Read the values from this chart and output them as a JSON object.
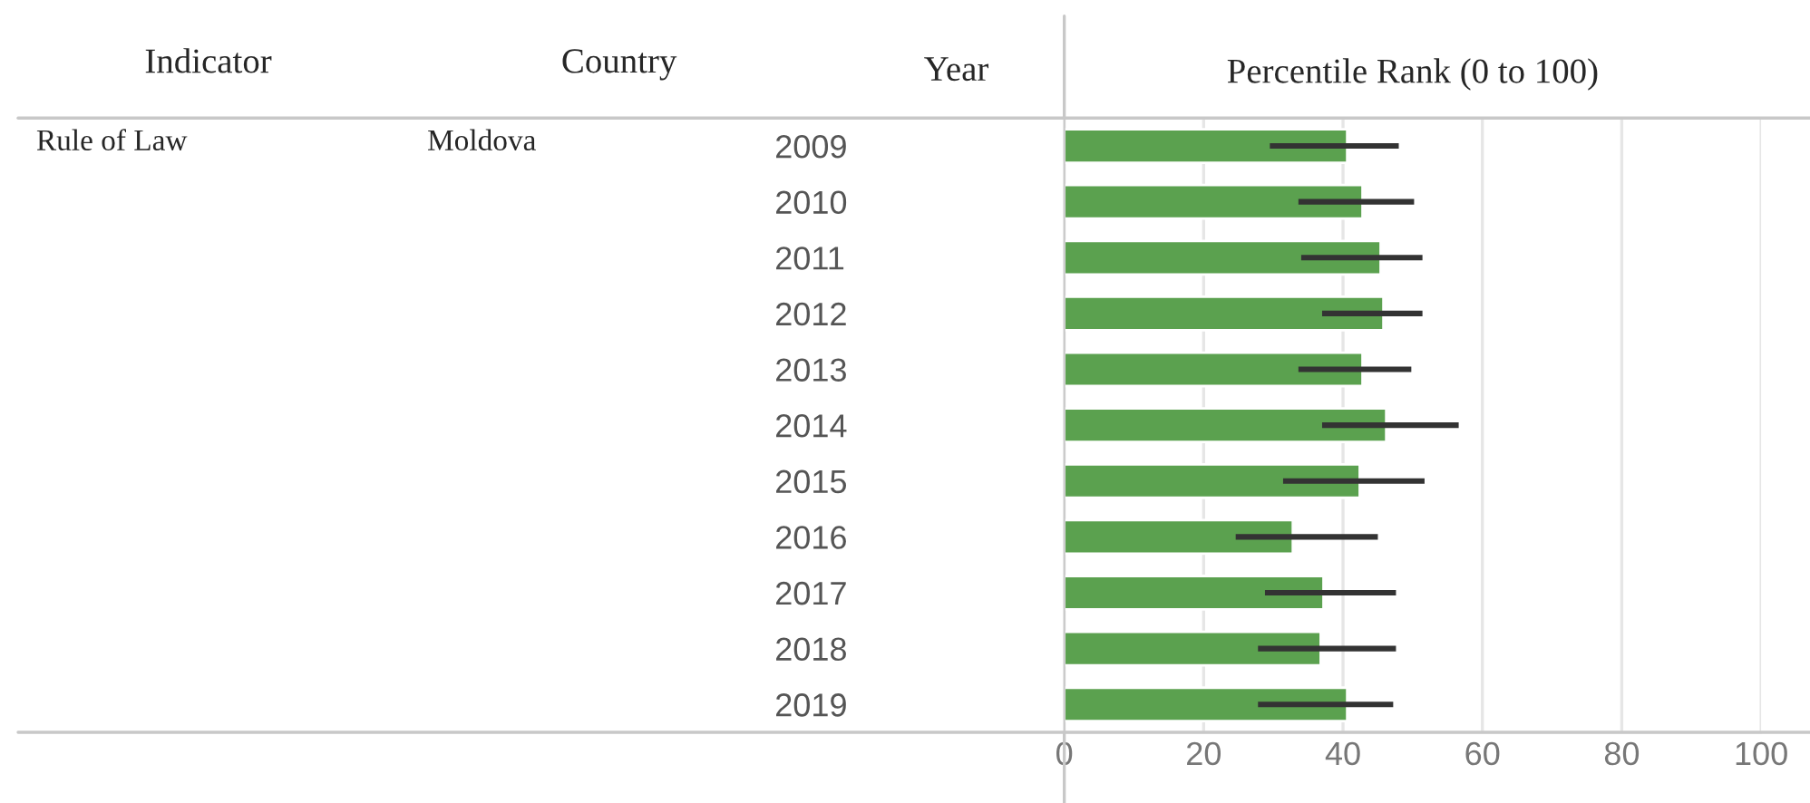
{
  "chart_data": {
    "type": "bar",
    "orientation": "horizontal",
    "xlabel": "Percentile Rank (0 to 100)",
    "ylabel": "Year",
    "annotations": [
      "Indicator",
      "Country",
      "Rule of Law",
      "Moldova"
    ],
    "categories": [
      "2009",
      "2010",
      "2011",
      "2012",
      "2013",
      "2014",
      "2015",
      "2016",
      "2017",
      "2018",
      "2019"
    ],
    "values": [
      40.6,
      42.8,
      45.4,
      45.8,
      42.8,
      46.2,
      42.4,
      32.8,
      37.2,
      36.8,
      40.6
    ],
    "errors": [
      [
        29.5,
        48.0
      ],
      [
        33.6,
        50.2
      ],
      [
        34.0,
        51.4
      ],
      [
        37.0,
        51.4
      ],
      [
        33.6,
        49.8
      ],
      [
        37.0,
        56.6
      ],
      [
        31.4,
        51.7
      ],
      [
        24.6,
        45.0
      ],
      [
        28.8,
        47.6
      ],
      [
        27.8,
        47.6
      ],
      [
        27.8,
        47.2
      ]
    ],
    "color": "#5ba14f",
    "xlim": [
      0,
      100
    ],
    "xticks": [
      0,
      20,
      40,
      60,
      80,
      100
    ],
    "grid": "x"
  }
}
